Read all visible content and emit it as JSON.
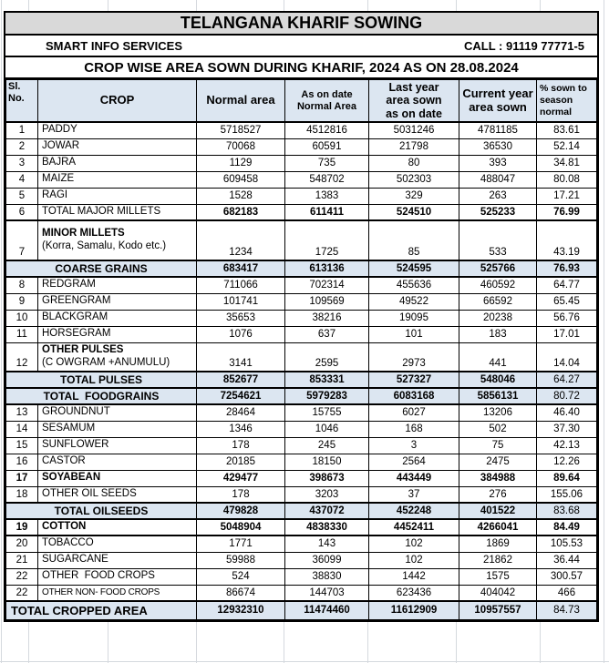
{
  "report": {
    "title": "TELANGANA KHARIF SOWING",
    "provider": "SMART INFO SERVICES",
    "call": "CALL : 91119 77771-5",
    "banner": "CROP WISE AREA SOWN DURING KHARIF, 2024 AS ON 28.08.2024"
  },
  "colors": {
    "title_bg": "#D9D9D9",
    "header_bg": "#DCE6F1",
    "subtotal_bg": "#DCE6F1",
    "border": "#000000",
    "gridline": "#D5D9DE"
  },
  "table": {
    "headers": [
      "Sl.\nNo.",
      "CROP",
      "Normal area",
      "As on date\nNormal Area",
      "Last year\narea sown\nas on date",
      "Current year\narea sown",
      "% sown to\nseason\nnormal"
    ],
    "rows": [
      {
        "sl": "1",
        "label": "PADDY",
        "values": [
          "5718527",
          "4512816",
          "5031246",
          "4781185",
          "83.61"
        ]
      },
      {
        "sl": "2",
        "label": "JOWAR",
        "values": [
          "70068",
          "60591",
          "21798",
          "36530",
          "52.14"
        ]
      },
      {
        "sl": "3",
        "label": "BAJRA",
        "values": [
          "1129",
          "735",
          "80",
          "393",
          "34.81"
        ]
      },
      {
        "sl": "4",
        "label": "MAIZE",
        "values": [
          "609458",
          "548702",
          "502303",
          "488047",
          "80.08"
        ]
      },
      {
        "sl": "5",
        "label": "RAGI",
        "values": [
          "1528",
          "1383",
          "329",
          "263",
          "17.21"
        ]
      },
      {
        "sl": "6",
        "label": "TOTAL MAJOR MILLETS",
        "numbold": true,
        "thickbottom": true,
        "values": [
          "682183",
          "611411",
          "524510",
          "525233",
          "76.99"
        ]
      },
      {
        "sl": "7",
        "label": "MINOR MILLETS",
        "label2": "(Korra, Samalu, Kodo etc.)",
        "tall": true,
        "values": [
          "1234",
          "1725",
          "85",
          "533",
          "43.19"
        ]
      },
      {
        "label": "COARSE GRAINS",
        "merged": true,
        "shaded": true,
        "emphasis": true,
        "thicktop": true,
        "thickbottom": true,
        "values": [
          "683417",
          "613136",
          "524595",
          "525766",
          "76.93"
        ]
      },
      {
        "sl": "8",
        "label": "REDGRAM",
        "values": [
          "711066",
          "702314",
          "455636",
          "460592",
          "64.77"
        ]
      },
      {
        "sl": "9",
        "label": "GREENGRAM",
        "values": [
          "101741",
          "109569",
          "49522",
          "66592",
          "65.45"
        ]
      },
      {
        "sl": "10",
        "label": "BLACKGRAM",
        "values": [
          "35653",
          "38216",
          "19095",
          "20238",
          "56.76"
        ]
      },
      {
        "sl": "11",
        "label": "HORSEGRAM",
        "values": [
          "1076",
          "637",
          "101",
          "183",
          "17.01"
        ]
      },
      {
        "sl": "12",
        "label": "OTHER PULSES",
        "label2": "(C OWGRAM +ANUMULU)",
        "tall2": true,
        "values": [
          "3141",
          "2595",
          "2973",
          "441",
          "14.04"
        ]
      },
      {
        "label": "TOTAL PULSES",
        "merged": true,
        "shaded": true,
        "emphasis": true,
        "pctplain": true,
        "thicktop": true,
        "thickbottom": true,
        "values": [
          "852677",
          "853331",
          "527327",
          "548046",
          "64.27"
        ]
      },
      {
        "label": "TOTAL  FOODGRAINS",
        "merged": true,
        "shaded": true,
        "emphasis": true,
        "pctplain": true,
        "thickbottom": true,
        "values": [
          "7254621",
          "5979283",
          "6083168",
          "5856131",
          "80.72"
        ]
      },
      {
        "sl": "13",
        "label": "GROUNDNUT",
        "values": [
          "28464",
          "15755",
          "6027",
          "13206",
          "46.40"
        ]
      },
      {
        "sl": "14",
        "label": "SESAMUM",
        "values": [
          "1346",
          "1046",
          "168",
          "502",
          "37.30"
        ]
      },
      {
        "sl": "15",
        "label": "SUNFLOWER",
        "values": [
          "178",
          "245",
          "3",
          "75",
          "42.13"
        ]
      },
      {
        "sl": "16",
        "label": "CASTOR",
        "values": [
          "20185",
          "18150",
          "2564",
          "2475",
          "12.26"
        ]
      },
      {
        "sl": "17",
        "label": "SOYABEAN",
        "emphasis": true,
        "values": [
          "429477",
          "398673",
          "443449",
          "384988",
          "89.64"
        ]
      },
      {
        "sl": "18",
        "label": "OTHER OIL SEEDS",
        "values": [
          "178",
          "3203",
          "37",
          "276",
          "155.06"
        ]
      },
      {
        "label": "TOTAL OILSEEDS",
        "merged": true,
        "shaded": true,
        "emphasis": true,
        "pctplain": true,
        "thicktop": true,
        "thickbottom": true,
        "values": [
          "479828",
          "437072",
          "452248",
          "401522",
          "83.68"
        ]
      },
      {
        "sl": "19",
        "label": "COTTON",
        "emphasis": true,
        "thickbottom": true,
        "values": [
          "5048904",
          "4838330",
          "4452411",
          "4266041",
          "84.49"
        ]
      },
      {
        "sl": "20",
        "label": "TOBACCO",
        "values": [
          "1771",
          "143",
          "102",
          "1869",
          "105.53"
        ]
      },
      {
        "sl": "21",
        "label": "SUGARCANE",
        "values": [
          "59988",
          "36099",
          "102",
          "21862",
          "36.44"
        ]
      },
      {
        "sl": "22",
        "label": "OTHER  FOOD CROPS",
        "values": [
          "524",
          "38830",
          "1442",
          "1575",
          "300.57"
        ]
      },
      {
        "sl": "22",
        "label": "OTHER NON- FOOD CROPS",
        "condensed": true,
        "values": [
          "86674",
          "144703",
          "623436",
          "404042",
          "466"
        ]
      },
      {
        "label": "TOTAL CROPPED AREA",
        "merged": true,
        "grand": true,
        "shaded": true,
        "emphasis": true,
        "pctplain": true,
        "thicktop": true,
        "values": [
          "12932310",
          "11474460",
          "11612909",
          "10957557",
          "84.73"
        ]
      }
    ]
  }
}
